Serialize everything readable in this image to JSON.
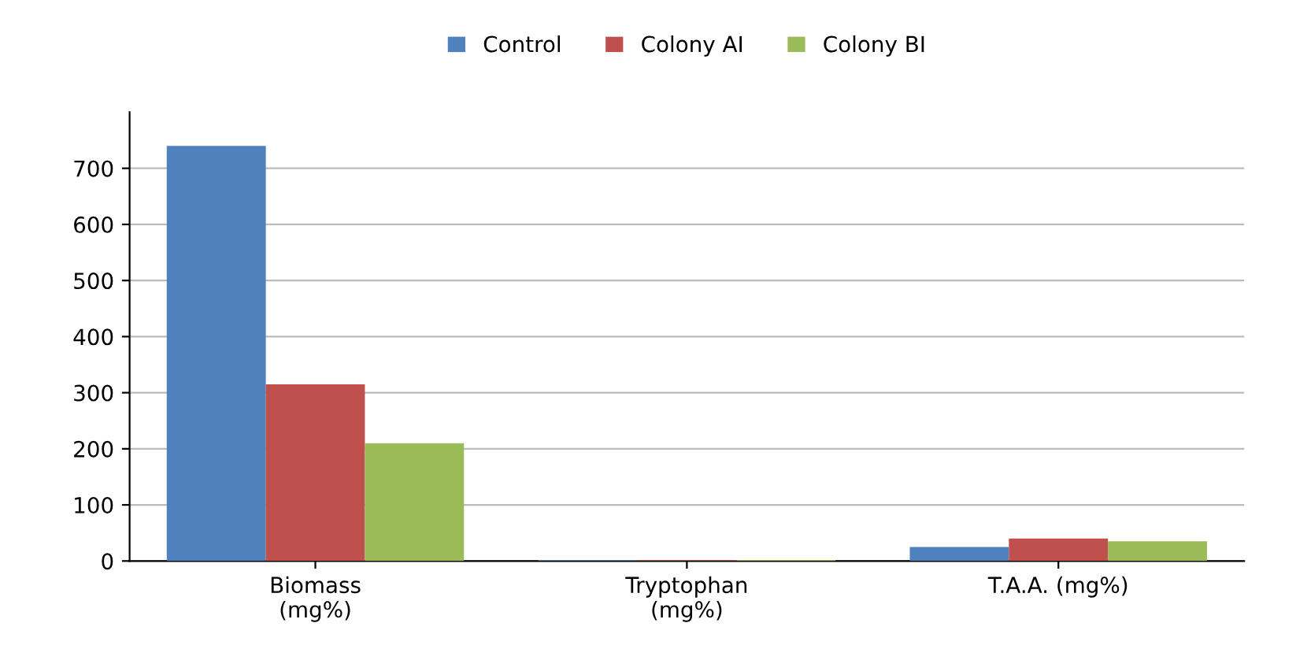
{
  "chart_data": {
    "type": "bar",
    "categories": [
      "Biomass\n(mg%)",
      "Tryptophan\n(mg%)",
      "T.A.A. (mg%)"
    ],
    "series": [
      {
        "name": "Control",
        "color": "#4f81bd",
        "values": [
          740,
          2,
          25
        ]
      },
      {
        "name": "Colony AI",
        "color": "#c0504d",
        "values": [
          315,
          2,
          40
        ]
      },
      {
        "name": "Colony BI",
        "color": "#9bbb59",
        "values": [
          210,
          2,
          35
        ]
      }
    ],
    "ylim": [
      0,
      800
    ],
    "yticks": [
      0,
      100,
      200,
      300,
      400,
      500,
      600,
      700
    ],
    "grid": "y",
    "legend": "top"
  }
}
